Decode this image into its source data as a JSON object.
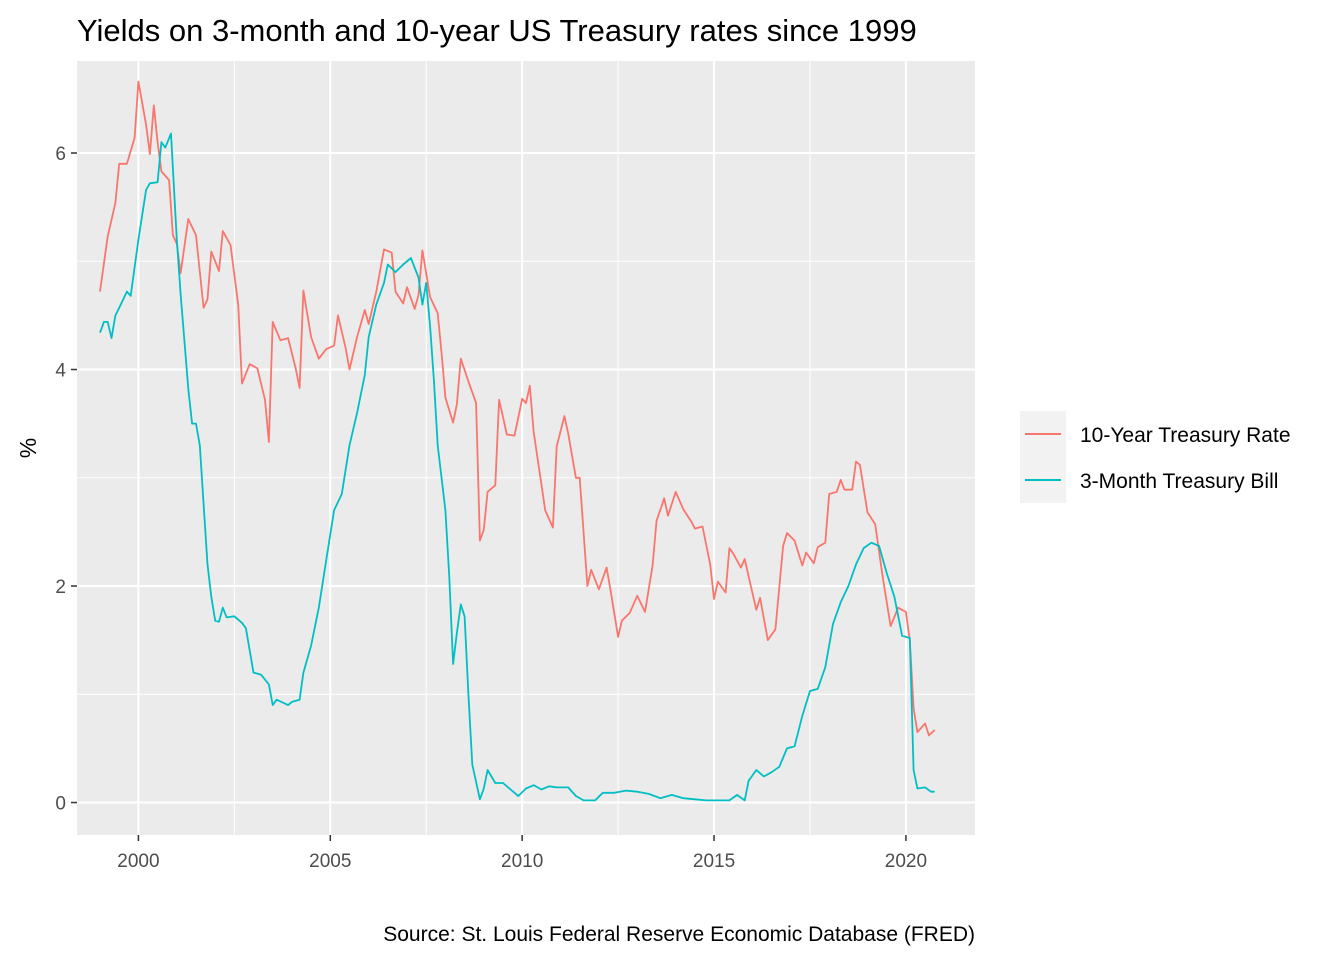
{
  "chart_data": {
    "type": "line",
    "title": "Yields on 3-month and 10-year US Treasury rates since 1999",
    "xlabel": "",
    "ylabel": "%",
    "caption": "Source: St. Louis Federal Reserve Economic Database (FRED)",
    "xlim": [
      1998.4,
      2021.8
    ],
    "ylim": [
      -0.3,
      6.85
    ],
    "x_ticks": [
      2000,
      2005,
      2010,
      2015,
      2020
    ],
    "x_tick_labels": [
      "2000",
      "2005",
      "2010",
      "2015",
      "2020"
    ],
    "y_ticks": [
      0,
      2,
      4,
      6
    ],
    "y_tick_labels": [
      "0",
      "2",
      "4",
      "6"
    ],
    "grid": true,
    "legend_position": "right",
    "series": [
      {
        "name": "10-Year Treasury Rate",
        "color": "#F8766D",
        "points": [
          [
            1999.0,
            4.72
          ],
          [
            1999.2,
            5.23
          ],
          [
            1999.4,
            5.54
          ],
          [
            1999.5,
            5.9
          ],
          [
            1999.7,
            5.9
          ],
          [
            1999.9,
            6.14
          ],
          [
            2000.0,
            6.66
          ],
          [
            2000.2,
            6.26
          ],
          [
            2000.3,
            5.99
          ],
          [
            2000.4,
            6.44
          ],
          [
            2000.5,
            6.1
          ],
          [
            2000.6,
            5.83
          ],
          [
            2000.8,
            5.75
          ],
          [
            2000.9,
            5.24
          ],
          [
            2001.0,
            5.16
          ],
          [
            2001.1,
            4.89
          ],
          [
            2001.3,
            5.39
          ],
          [
            2001.5,
            5.24
          ],
          [
            2001.7,
            4.57
          ],
          [
            2001.8,
            4.65
          ],
          [
            2001.9,
            5.09
          ],
          [
            2002.1,
            4.91
          ],
          [
            2002.2,
            5.28
          ],
          [
            2002.4,
            5.15
          ],
          [
            2002.6,
            4.6
          ],
          [
            2002.7,
            3.87
          ],
          [
            2002.9,
            4.05
          ],
          [
            2003.1,
            4.01
          ],
          [
            2003.3,
            3.72
          ],
          [
            2003.4,
            3.33
          ],
          [
            2003.5,
            4.44
          ],
          [
            2003.7,
            4.27
          ],
          [
            2003.9,
            4.29
          ],
          [
            2004.1,
            4.01
          ],
          [
            2004.2,
            3.83
          ],
          [
            2004.3,
            4.73
          ],
          [
            2004.5,
            4.3
          ],
          [
            2004.7,
            4.1
          ],
          [
            2004.9,
            4.19
          ],
          [
            2005.1,
            4.22
          ],
          [
            2005.2,
            4.5
          ],
          [
            2005.4,
            4.2
          ],
          [
            2005.5,
            4.0
          ],
          [
            2005.7,
            4.3
          ],
          [
            2005.9,
            4.55
          ],
          [
            2006.0,
            4.42
          ],
          [
            2006.2,
            4.72
          ],
          [
            2006.4,
            5.11
          ],
          [
            2006.6,
            5.08
          ],
          [
            2006.7,
            4.72
          ],
          [
            2006.9,
            4.61
          ],
          [
            2007.0,
            4.76
          ],
          [
            2007.2,
            4.56
          ],
          [
            2007.3,
            4.69
          ],
          [
            2007.4,
            5.1
          ],
          [
            2007.6,
            4.67
          ],
          [
            2007.8,
            4.52
          ],
          [
            2007.9,
            4.15
          ],
          [
            2008.0,
            3.74
          ],
          [
            2008.2,
            3.51
          ],
          [
            2008.3,
            3.68
          ],
          [
            2008.4,
            4.1
          ],
          [
            2008.6,
            3.89
          ],
          [
            2008.8,
            3.69
          ],
          [
            2008.9,
            2.42
          ],
          [
            2009.0,
            2.52
          ],
          [
            2009.1,
            2.87
          ],
          [
            2009.3,
            2.93
          ],
          [
            2009.4,
            3.72
          ],
          [
            2009.5,
            3.56
          ],
          [
            2009.6,
            3.4
          ],
          [
            2009.8,
            3.39
          ],
          [
            2010.0,
            3.73
          ],
          [
            2010.1,
            3.69
          ],
          [
            2010.2,
            3.85
          ],
          [
            2010.3,
            3.42
          ],
          [
            2010.5,
            2.94
          ],
          [
            2010.6,
            2.7
          ],
          [
            2010.8,
            2.54
          ],
          [
            2010.9,
            3.29
          ],
          [
            2011.1,
            3.57
          ],
          [
            2011.2,
            3.41
          ],
          [
            2011.4,
            3.0
          ],
          [
            2011.5,
            3.0
          ],
          [
            2011.7,
            2.0
          ],
          [
            2011.8,
            2.15
          ],
          [
            2012.0,
            1.97
          ],
          [
            2012.2,
            2.17
          ],
          [
            2012.3,
            1.97
          ],
          [
            2012.5,
            1.53
          ],
          [
            2012.6,
            1.68
          ],
          [
            2012.8,
            1.75
          ],
          [
            2013.0,
            1.91
          ],
          [
            2013.2,
            1.76
          ],
          [
            2013.4,
            2.19
          ],
          [
            2013.5,
            2.6
          ],
          [
            2013.7,
            2.81
          ],
          [
            2013.8,
            2.65
          ],
          [
            2014.0,
            2.87
          ],
          [
            2014.2,
            2.71
          ],
          [
            2014.4,
            2.6
          ],
          [
            2014.5,
            2.53
          ],
          [
            2014.7,
            2.55
          ],
          [
            2014.9,
            2.2
          ],
          [
            2015.0,
            1.88
          ],
          [
            2015.1,
            2.04
          ],
          [
            2015.3,
            1.94
          ],
          [
            2015.4,
            2.35
          ],
          [
            2015.5,
            2.3
          ],
          [
            2015.7,
            2.17
          ],
          [
            2015.8,
            2.25
          ],
          [
            2015.9,
            2.09
          ],
          [
            2016.1,
            1.78
          ],
          [
            2016.2,
            1.89
          ],
          [
            2016.4,
            1.5
          ],
          [
            2016.6,
            1.6
          ],
          [
            2016.8,
            2.37
          ],
          [
            2016.9,
            2.49
          ],
          [
            2017.1,
            2.42
          ],
          [
            2017.3,
            2.19
          ],
          [
            2017.4,
            2.31
          ],
          [
            2017.6,
            2.21
          ],
          [
            2017.7,
            2.36
          ],
          [
            2017.9,
            2.4
          ],
          [
            2018.0,
            2.85
          ],
          [
            2018.2,
            2.87
          ],
          [
            2018.3,
            2.98
          ],
          [
            2018.4,
            2.89
          ],
          [
            2018.6,
            2.89
          ],
          [
            2018.7,
            3.15
          ],
          [
            2018.8,
            3.12
          ],
          [
            2019.0,
            2.68
          ],
          [
            2019.2,
            2.57
          ],
          [
            2019.4,
            2.07
          ],
          [
            2019.6,
            1.63
          ],
          [
            2019.8,
            1.8
          ],
          [
            2020.0,
            1.76
          ],
          [
            2020.1,
            1.5
          ],
          [
            2020.2,
            0.87
          ],
          [
            2020.3,
            0.65
          ],
          [
            2020.5,
            0.73
          ],
          [
            2020.6,
            0.62
          ],
          [
            2020.75,
            0.67
          ]
        ]
      },
      {
        "name": "3-Month Treasury Bill",
        "color": "#00BFC4",
        "points": [
          [
            1999.0,
            4.34
          ],
          [
            1999.1,
            4.44
          ],
          [
            1999.2,
            4.44
          ],
          [
            1999.3,
            4.29
          ],
          [
            1999.4,
            4.5
          ],
          [
            1999.5,
            4.57
          ],
          [
            1999.7,
            4.72
          ],
          [
            1999.8,
            4.68
          ],
          [
            2000.0,
            5.2
          ],
          [
            2000.2,
            5.66
          ],
          [
            2000.3,
            5.72
          ],
          [
            2000.5,
            5.73
          ],
          [
            2000.6,
            6.1
          ],
          [
            2000.7,
            6.05
          ],
          [
            2000.85,
            6.18
          ],
          [
            2001.0,
            5.2
          ],
          [
            2001.1,
            4.7
          ],
          [
            2001.3,
            3.82
          ],
          [
            2001.4,
            3.5
          ],
          [
            2001.5,
            3.5
          ],
          [
            2001.6,
            3.3
          ],
          [
            2001.8,
            2.2
          ],
          [
            2001.9,
            1.9
          ],
          [
            2002.0,
            1.68
          ],
          [
            2002.1,
            1.67
          ],
          [
            2002.2,
            1.8
          ],
          [
            2002.3,
            1.71
          ],
          [
            2002.5,
            1.72
          ],
          [
            2002.7,
            1.66
          ],
          [
            2002.8,
            1.61
          ],
          [
            2003.0,
            1.2
          ],
          [
            2003.2,
            1.18
          ],
          [
            2003.4,
            1.09
          ],
          [
            2003.5,
            0.9
          ],
          [
            2003.6,
            0.95
          ],
          [
            2003.9,
            0.9
          ],
          [
            2004.0,
            0.93
          ],
          [
            2004.2,
            0.95
          ],
          [
            2004.3,
            1.2
          ],
          [
            2004.5,
            1.45
          ],
          [
            2004.7,
            1.8
          ],
          [
            2004.9,
            2.25
          ],
          [
            2005.1,
            2.7
          ],
          [
            2005.3,
            2.85
          ],
          [
            2005.5,
            3.3
          ],
          [
            2005.7,
            3.6
          ],
          [
            2005.9,
            3.95
          ],
          [
            2006.0,
            4.3
          ],
          [
            2006.2,
            4.6
          ],
          [
            2006.4,
            4.8
          ],
          [
            2006.5,
            4.97
          ],
          [
            2006.7,
            4.9
          ],
          [
            2006.9,
            4.97
          ],
          [
            2007.1,
            5.03
          ],
          [
            2007.3,
            4.85
          ],
          [
            2007.4,
            4.6
          ],
          [
            2007.5,
            4.8
          ],
          [
            2007.6,
            4.4
          ],
          [
            2007.7,
            3.9
          ],
          [
            2007.8,
            3.3
          ],
          [
            2008.0,
            2.7
          ],
          [
            2008.1,
            2.1
          ],
          [
            2008.2,
            1.28
          ],
          [
            2008.3,
            1.57
          ],
          [
            2008.4,
            1.83
          ],
          [
            2008.5,
            1.72
          ],
          [
            2008.6,
            1.0
          ],
          [
            2008.7,
            0.35
          ],
          [
            2008.9,
            0.03
          ],
          [
            2009.0,
            0.13
          ],
          [
            2009.1,
            0.3
          ],
          [
            2009.3,
            0.18
          ],
          [
            2009.5,
            0.18
          ],
          [
            2009.7,
            0.12
          ],
          [
            2009.9,
            0.06
          ],
          [
            2010.1,
            0.13
          ],
          [
            2010.3,
            0.16
          ],
          [
            2010.5,
            0.12
          ],
          [
            2010.7,
            0.15
          ],
          [
            2010.9,
            0.14
          ],
          [
            2011.2,
            0.14
          ],
          [
            2011.4,
            0.06
          ],
          [
            2011.6,
            0.02
          ],
          [
            2011.9,
            0.02
          ],
          [
            2012.1,
            0.09
          ],
          [
            2012.4,
            0.09
          ],
          [
            2012.7,
            0.11
          ],
          [
            2013.0,
            0.1
          ],
          [
            2013.3,
            0.08
          ],
          [
            2013.6,
            0.04
          ],
          [
            2013.9,
            0.07
          ],
          [
            2014.2,
            0.04
          ],
          [
            2014.5,
            0.03
          ],
          [
            2014.8,
            0.02
          ],
          [
            2015.1,
            0.02
          ],
          [
            2015.4,
            0.02
          ],
          [
            2015.6,
            0.07
          ],
          [
            2015.8,
            0.02
          ],
          [
            2015.9,
            0.2
          ],
          [
            2016.1,
            0.3
          ],
          [
            2016.3,
            0.24
          ],
          [
            2016.5,
            0.28
          ],
          [
            2016.7,
            0.33
          ],
          [
            2016.9,
            0.5
          ],
          [
            2017.1,
            0.52
          ],
          [
            2017.3,
            0.8
          ],
          [
            2017.5,
            1.03
          ],
          [
            2017.7,
            1.05
          ],
          [
            2017.9,
            1.25
          ],
          [
            2018.1,
            1.65
          ],
          [
            2018.3,
            1.85
          ],
          [
            2018.5,
            2.0
          ],
          [
            2018.7,
            2.2
          ],
          [
            2018.9,
            2.35
          ],
          [
            2019.1,
            2.4
          ],
          [
            2019.3,
            2.37
          ],
          [
            2019.5,
            2.12
          ],
          [
            2019.7,
            1.9
          ],
          [
            2019.9,
            1.54
          ],
          [
            2020.1,
            1.52
          ],
          [
            2020.2,
            0.3
          ],
          [
            2020.3,
            0.13
          ],
          [
            2020.5,
            0.14
          ],
          [
            2020.65,
            0.1
          ],
          [
            2020.75,
            0.1
          ]
        ]
      }
    ]
  }
}
